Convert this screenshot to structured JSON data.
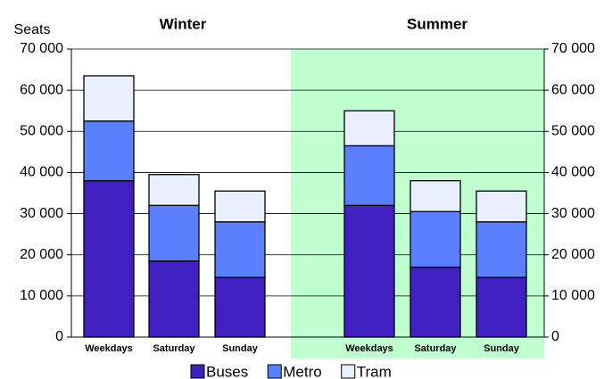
{
  "chart_data": {
    "type": "bar",
    "stacked": true,
    "y_label": "Seats",
    "ylim": [
      0,
      70000
    ],
    "yticks": [
      {
        "value": 0,
        "label": "0"
      },
      {
        "value": 10000,
        "label": "10 000"
      },
      {
        "value": 20000,
        "label": "20 000"
      },
      {
        "value": 30000,
        "label": "30 000"
      },
      {
        "value": 40000,
        "label": "40 000"
      },
      {
        "value": 50000,
        "label": "50 000"
      },
      {
        "value": 60000,
        "label": "60 000"
      },
      {
        "value": 70000,
        "label": "70 000"
      }
    ],
    "grid": true,
    "legend": "bottom",
    "series": [
      {
        "name": "Buses",
        "color": "#4020c0"
      },
      {
        "name": "Metro",
        "color": "#5b80ff"
      },
      {
        "name": "Tram",
        "color": "#e8f0ff"
      }
    ],
    "groups": [
      {
        "title": "Winter",
        "categories": [
          "Weekdays",
          "Saturday",
          "Sunday"
        ],
        "series_values": [
          [
            38000,
            18500,
            14500
          ],
          [
            14500,
            13500,
            13500
          ],
          [
            11000,
            7500,
            7500
          ]
        ]
      },
      {
        "title": "Summer",
        "background": "#c0ffd0",
        "categories": [
          "Weekdays",
          "Saturday",
          "Sunday"
        ],
        "series_values": [
          [
            32000,
            17000,
            14500
          ],
          [
            14500,
            13500,
            13500
          ],
          [
            8500,
            7500,
            7500
          ]
        ]
      }
    ]
  }
}
